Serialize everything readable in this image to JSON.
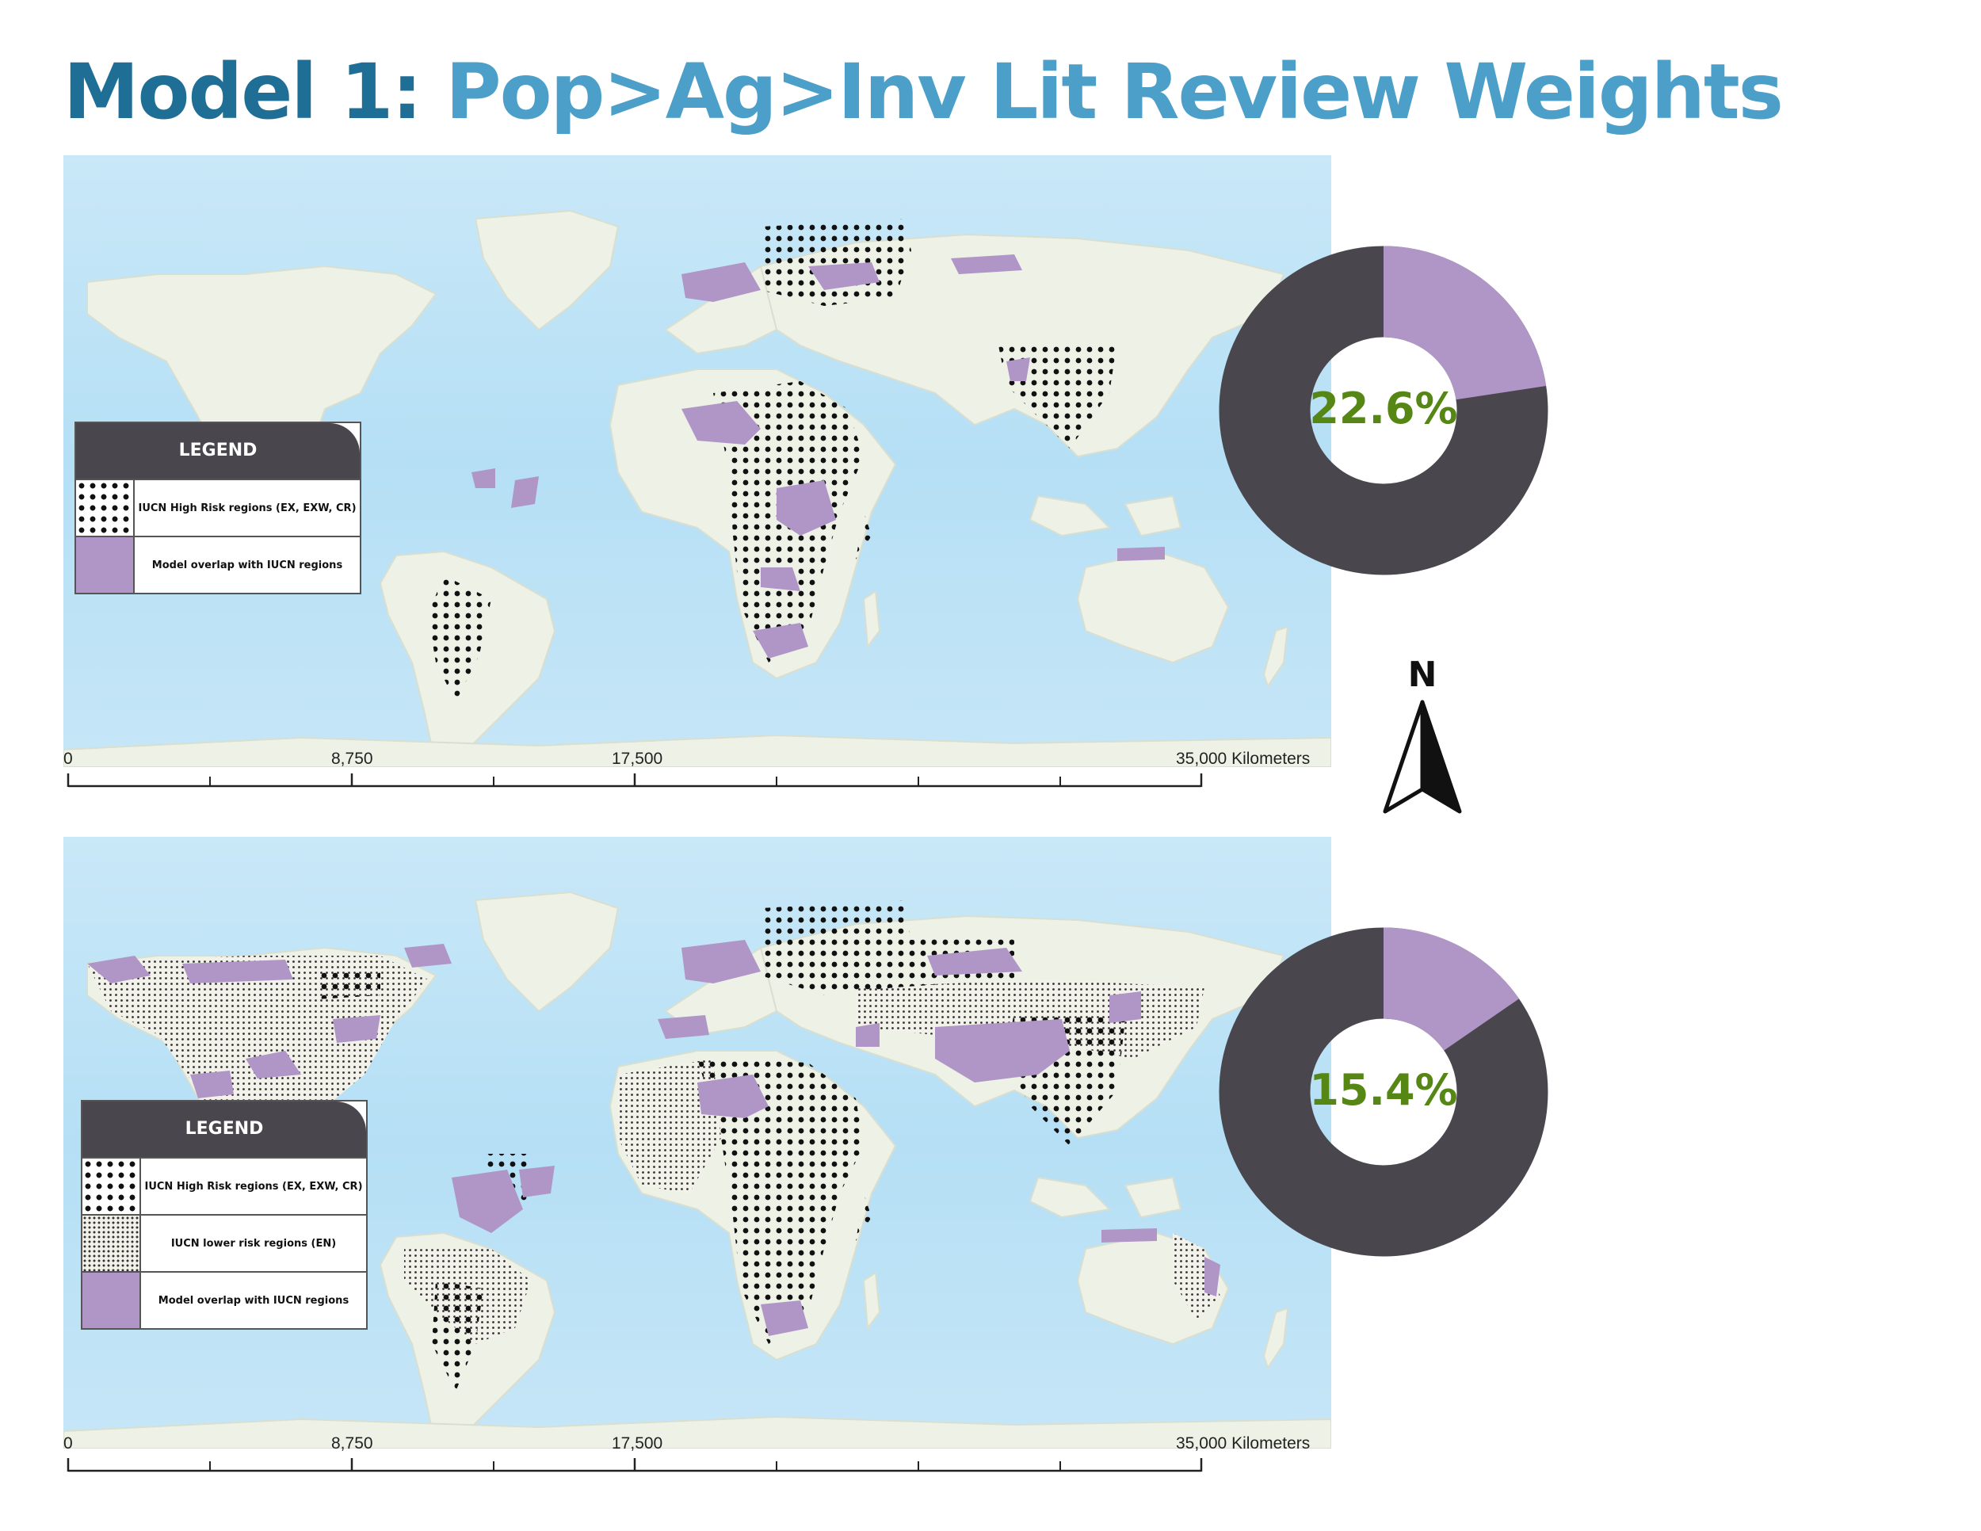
{
  "title": {
    "prefix": "Model 1:",
    "main": "Pop>Ag>Inv Lit Review Weights"
  },
  "maps": [
    {
      "legend": {
        "heading": "LEGEND",
        "items": [
          {
            "label": "IUCN High Risk regions (EX, EXW, CR)",
            "swatch": "high-risk-dots"
          },
          {
            "label": "Model overlap with IUCN regions",
            "swatch": "overlap-purple"
          }
        ]
      },
      "scale": {
        "ticks": [
          "0",
          "8,750",
          "17,500",
          "35,000 Kilometers"
        ]
      },
      "overlap_percent": 22.6,
      "overlap_label": "22.6%"
    },
    {
      "legend": {
        "heading": "LEGEND",
        "items": [
          {
            "label": "IUCN High Risk regions (EX, EXW, CR)",
            "swatch": "high-risk-dots"
          },
          {
            "label": "IUCN lower risk regions (EN)",
            "swatch": "lower-risk-dots"
          },
          {
            "label": "Model overlap with IUCN regions",
            "swatch": "overlap-purple"
          }
        ]
      },
      "scale": {
        "ticks": [
          "0",
          "8,750",
          "17,500",
          "35,000 Kilometers"
        ]
      },
      "overlap_percent": 15.4,
      "overlap_label": "15.4%"
    }
  ],
  "north_arrow": {
    "label": "N"
  },
  "colors": {
    "title_dark": "#1f6e96",
    "title_light": "#4b9fc9",
    "ocean": "#b9e2f6",
    "land": "#eef2e6",
    "overlap": "#b096c7",
    "donut_rest": "#49474d",
    "percent_text": "#568614"
  }
}
